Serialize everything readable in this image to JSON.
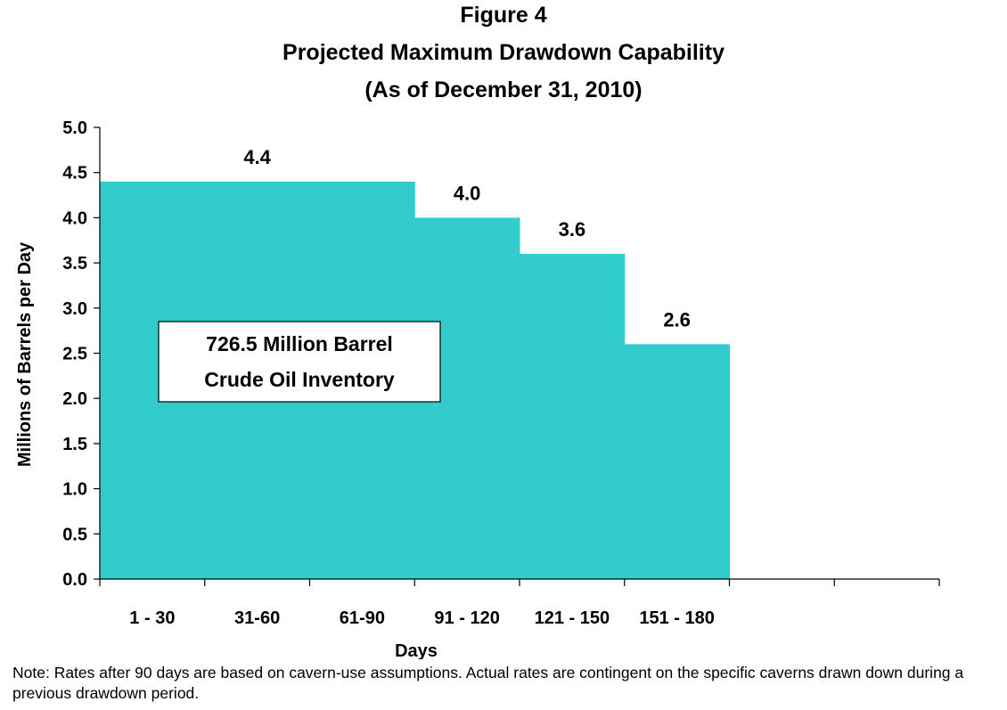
{
  "chart_data": {
    "type": "area",
    "title": "Figure 4",
    "subtitle": "Projected Maximum Drawdown Capability",
    "subtitle2": "(As of December 31, 2010)",
    "xlabel": "Days",
    "ylabel": "Millions of Barrels per Day",
    "categories": [
      "1 - 30",
      "31-60",
      "61-90",
      "91 - 120",
      "121 - 150",
      "151 - 180",
      "",
      ""
    ],
    "values": [
      4.4,
      4.4,
      4.4,
      4.0,
      3.6,
      2.6,
      null,
      null
    ],
    "data_labels": [
      {
        "text": "4.4",
        "category_index": 1,
        "value": 4.4
      },
      {
        "text": "4.0",
        "category_index": 3,
        "value": 4.0
      },
      {
        "text": "3.6",
        "category_index": 4,
        "value": 3.6
      },
      {
        "text": "2.6",
        "category_index": 5,
        "value": 2.6
      }
    ],
    "yticks": [
      "0.0",
      "0.5",
      "1.0",
      "1.5",
      "2.0",
      "2.5",
      "3.0",
      "3.5",
      "4.0",
      "4.5",
      "5.0"
    ],
    "ylim": [
      0,
      5
    ],
    "grid": false,
    "legend": "none",
    "fill_color": "#33CCCC",
    "annotation": {
      "line1": "726.5 Million Barrel",
      "line2": "Crude Oil Inventory"
    }
  },
  "note": "Note: Rates after 90 days are based on cavern-use assumptions.   Actual rates are contingent on the specific caverns drawn down during a previous drawdown period."
}
